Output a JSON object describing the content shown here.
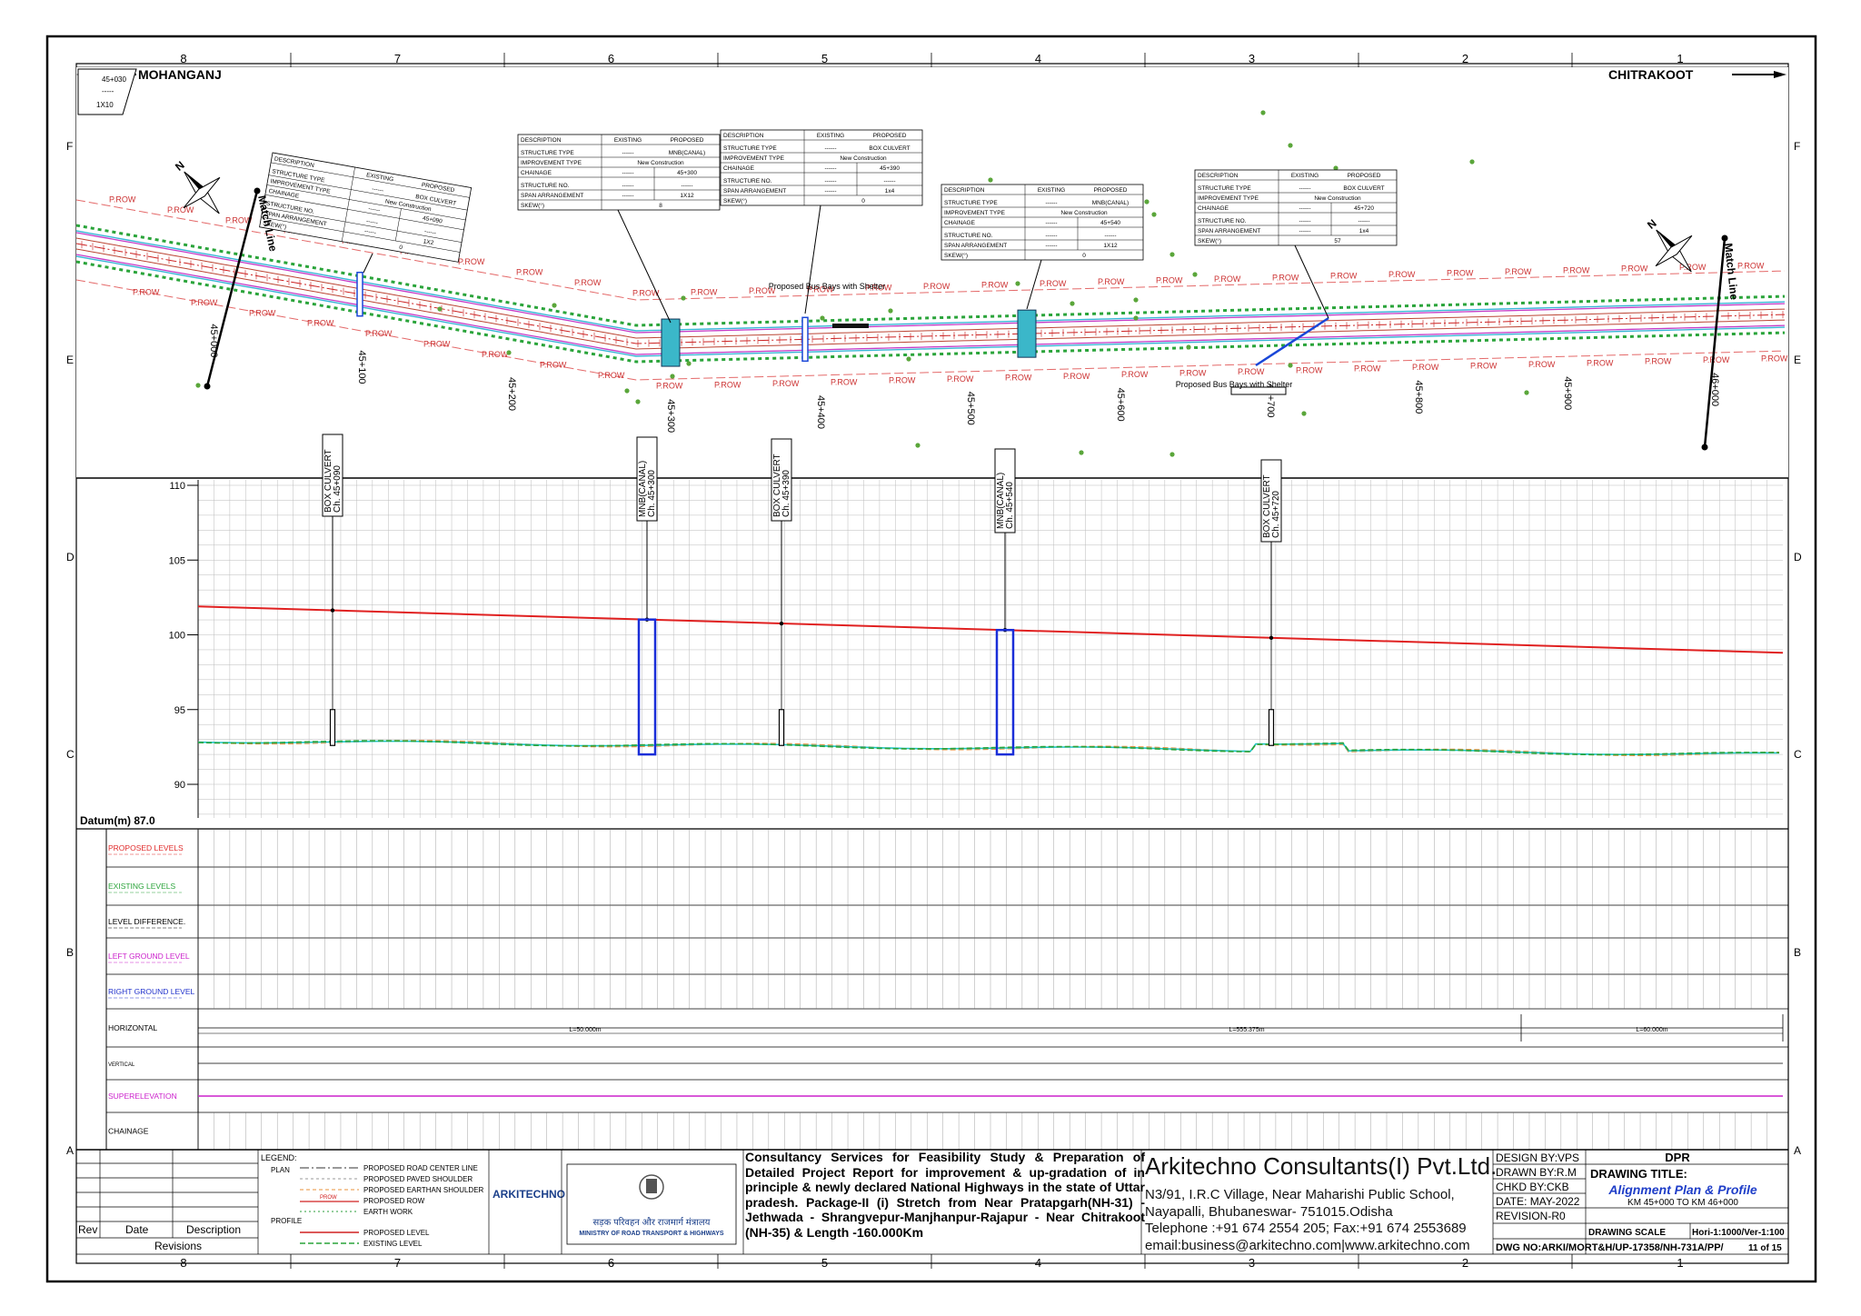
{
  "sheet": {
    "grid_columns": [
      "8",
      "7",
      "6",
      "5",
      "4",
      "3",
      "2",
      "1"
    ],
    "grid_rows": [
      "F",
      "E",
      "D",
      "C",
      "B",
      "A"
    ]
  },
  "plan": {
    "left_town": "MOHANGANJ",
    "right_town": "CHITRAKOOT",
    "match_line": "Match Line",
    "row_label": "P.ROW",
    "stations": [
      "45+000",
      "45+100",
      "45+200",
      "45+300",
      "45+400",
      "45+500",
      "45+600",
      "45+700",
      "45+800",
      "45+900",
      "46+000"
    ],
    "corner_block": [
      "45+030",
      "-----",
      "1X10"
    ],
    "bus_bay_1": "Proposed Bus Bays with Shelter",
    "bus_bay_2": "Proposed Bus Bays with Shelter",
    "table_headers": {
      "description": "DESCRIPTION",
      "existing": "EXISTING",
      "proposed": "PROPOSED"
    },
    "table_row_labels": [
      "STRUCTURE TYPE",
      "IMPROVEMENT TYPE",
      "CHAINAGE",
      "STRUCTURE NO.",
      "SPAN ARRANGEMENT",
      "SKEW(°)"
    ],
    "structures": [
      {
        "type": "BOX CULVERT",
        "improvement": "New Construction",
        "chainage": "45+090",
        "structure_no": "------",
        "span": "1X2",
        "skew": "0"
      },
      {
        "type": "MNB(CANAL)",
        "improvement": "New Construction",
        "chainage": "45+300",
        "structure_no": "------",
        "span": "1X12",
        "skew": "8"
      },
      {
        "type": "BOX CULVERT",
        "improvement": "New Construction",
        "chainage": "45+390",
        "structure_no": "------",
        "span": "1x4",
        "skew": "0"
      },
      {
        "type": "MNB(CANAL)",
        "improvement": "New Construction",
        "chainage": "45+540",
        "structure_no": "------",
        "span": "1X12",
        "skew": "0"
      },
      {
        "type": "BOX CULVERT",
        "improvement": "New Construction",
        "chainage": "45+720",
        "structure_no": "------",
        "span": "1x4",
        "skew": "57"
      }
    ],
    "existing_dash": "------"
  },
  "profile": {
    "datum": "Datum(m) 87.0",
    "y_ticks": [
      "110",
      "105",
      "100",
      "95",
      "90"
    ],
    "structure_labels": [
      "BOX CULVERT Ch. 45+090",
      "MNB(CANAL) Ch. 45+300",
      "BOX CULVERT Ch. 45+390",
      "MNB(CANAL) Ch. 45+540",
      "BOX CULVERT Ch. 45+720"
    ],
    "row_labels": [
      "PROPOSED LEVELS",
      "EXISTING LEVELS",
      "LEVEL DIFFERENCE.",
      "LEFT GROUND LEVEL",
      "RIGHT GROUND LEVEL",
      "HORIZONTAL",
      "VERTICAL",
      "SUPERELEVATION",
      "CHAINAGE"
    ],
    "horizontal_segments": [
      "L=50.000m",
      "L=555.375m",
      "L=60.000m"
    ]
  },
  "legend": {
    "title": "LEGEND:",
    "plan_title": "PLAN",
    "profile_title": "PROFILE",
    "items": [
      "PROPOSED ROAD CENTER LINE",
      "PROPOSED PAVED SHOULDER",
      "PROPOSED EARTHAN SHOULDER",
      "PROPOSED ROW",
      "EARTH WORK"
    ],
    "row_key": "PROW",
    "profile_items": [
      "PROPOSED LEVEL",
      "EXISTING LEVEL"
    ]
  },
  "revisions": {
    "rev": "Rev",
    "date": "Date",
    "description": "Description",
    "title": "Revisions"
  },
  "logos": {
    "arkitechno": "ARKITECHNO",
    "ministry_hindi": "सड़क परिवहन और राजमार्ग मंत्रालय",
    "ministry": "MINISTRY OF ROAD TRANSPORT & HIGHWAYS"
  },
  "project_title": "Consultancy Services for Feasibility Study & Preparation of Detailed Project Report for improvement & up-gradation of in principle & newly declared National Highways in the state of Uttar pradesh. Package-II (i) Stretch from Near Pratapgarh(NH-31) - Jethwada - Shrangvepur-Manjhanpur-Rajapur - Near Chitrakoot (NH-35) & Length -160.000Km",
  "consultant": {
    "name": "Arkitechno Consultants(I) Pvt.Ltd.",
    "address1": "N3/91, I.R.C Village, Near Maharishi Public School,",
    "address2": "Nayapalli, Bhubaneswar- 751015.Odisha",
    "phone": "Telephone :+91 674 2554 205; Fax:+91 674 2553689",
    "email": "email:business@arkitechno.com|www.arkitechno.com"
  },
  "drawing_info": {
    "design_by": "DESIGN BY:VPS",
    "drawn_by": "DRAWN BY:R.M",
    "chkd_by": "CHKD BY:CKB",
    "date": "DATE: MAY-2022",
    "revision": "REVISION-R0",
    "dpr": "DPR",
    "drawing_title_label": "DRAWING TITLE:",
    "drawing_title": "Alignment Plan & Profile",
    "km_range": "KM 45+000 TO KM 46+000",
    "scale_label": "DRAWING SCALE",
    "scale": "Hori-1:1000/Ver-1:100",
    "dwg_no": "DWG NO:ARKI/MORT&H/UP-17358/NH-731A/PP/",
    "sheet_no": "11 of 15"
  }
}
